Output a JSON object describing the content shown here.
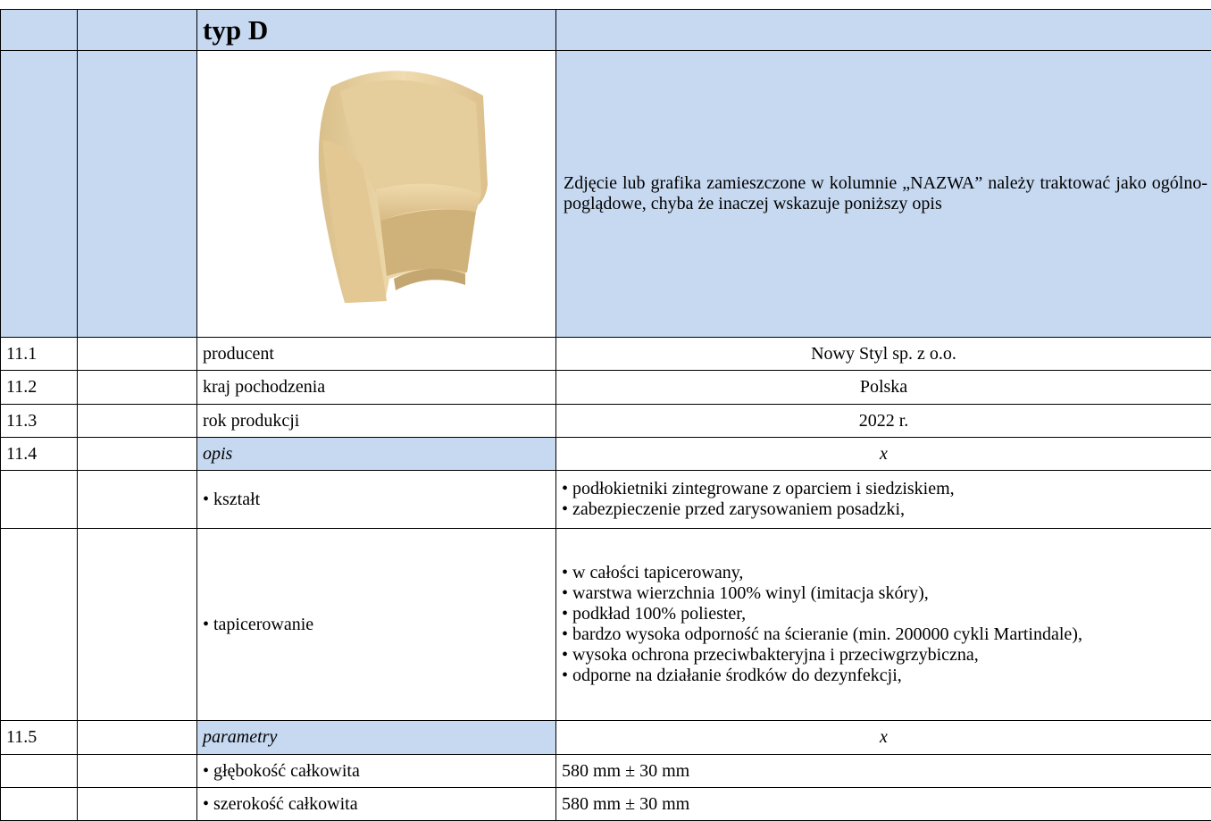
{
  "table": {
    "header": {
      "title": "typ D"
    },
    "image_note": "Zdjęcie lub grafika zamieszczone w kolumnie „NAZWA” należy traktować jako ogólno-poglądowe, chyba że inaczej wskazuje poniższy opis",
    "rows": [
      {
        "number": "11.1",
        "label": "producent",
        "value": "Nowy Styl sp. z o.o."
      },
      {
        "number": "11.2",
        "label": "kraj pochodzenia",
        "value": "Polska"
      },
      {
        "number": "11.3",
        "label": "rok produkcji",
        "value": "2022 r."
      },
      {
        "number": "11.4",
        "label": "opis",
        "section_value": "x"
      },
      {
        "label": "• kształt",
        "lines": [
          "• podłokietniki zintegrowane z oparciem i siedziskiem,",
          "• zabezpieczenie przed zarysowaniem posadzki,"
        ]
      },
      {
        "label": "• tapicerowanie",
        "lines": [
          "• w całości tapicerowany,",
          "• warstwa wierzchnia 100% winyl (imitacja skóry),",
          "• podkład 100% poliester,",
          "• bardzo wysoka odporność na ścieranie (min. 200000 cykli Martindale),",
          "• wysoka ochrona przeciwbakteryjna i przeciwgrzybiczna,",
          "• odporne na działanie środków do dezynfekcji,"
        ]
      },
      {
        "number": "11.5",
        "label": "parametry",
        "section_value": "x"
      },
      {
        "label": "• głębokość całkowita",
        "lines": [
          "580 mm ± 30 mm"
        ]
      },
      {
        "label": "• szerokość całkowita",
        "lines": [
          "580 mm ± 30 mm"
        ]
      }
    ]
  }
}
